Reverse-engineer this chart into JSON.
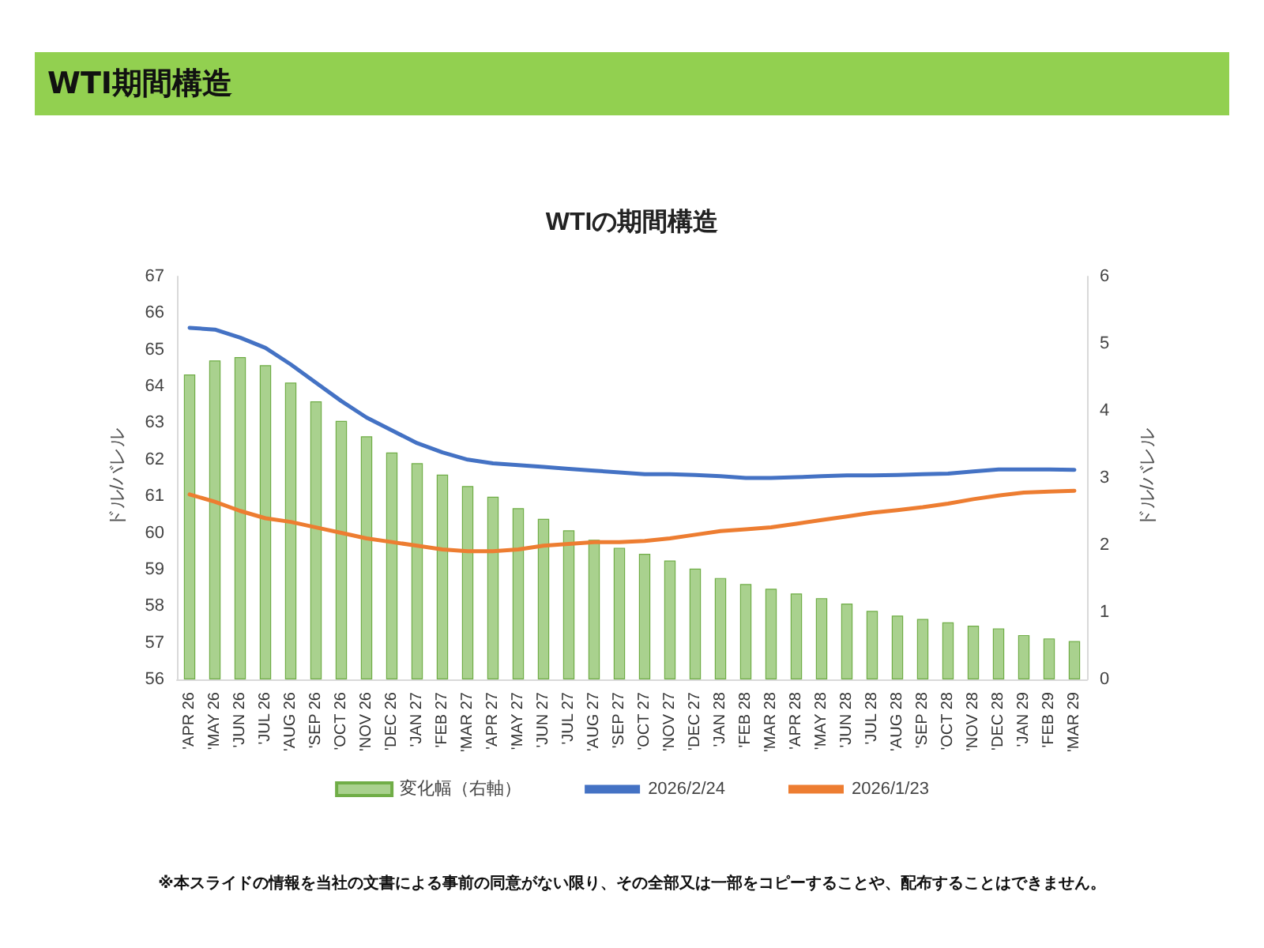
{
  "chart_data": {
    "type": "bar",
    "title": "WTIの期間構造",
    "subtitle": "WTI期間構造",
    "ylabel": "ドル/バレル",
    "y2label": "ドル/バレル",
    "annotations": [
      "※本スライドの情報を当社の文書による事前の同意がない限り、その全部又は一部をコピーすることや、配布することはできません。"
    ],
    "categories": [
      "'APR 26",
      "'MAY 26",
      "'JUN 26",
      "'JUL 26",
      "'AUG 26",
      "'SEP 26",
      "'OCT 26",
      "'NOV 26",
      "'DEC 26",
      "'JAN 27",
      "'FEB 27",
      "'MAR 27",
      "'APR 27",
      "'MAY 27",
      "'JUN 27",
      "'JUL 27",
      "'AUG 27",
      "'SEP 27",
      "'OCT 27",
      "'NOV 27",
      "'DEC 27",
      "'JAN 28",
      "'FEB 28",
      "'MAR 28",
      "'APR 28",
      "'MAY 28",
      "'JUN 28",
      "'JUL 28",
      "'AUG 28",
      "'SEP 28",
      "'OCT 28",
      "'NOV 28",
      "'DEC 28",
      "'JAN 29",
      "'FEB 29",
      "'MAR 29"
    ],
    "series": [
      {
        "name": "変化幅（右軸）",
        "axis": "y2",
        "color": "#a9d18e",
        "values": [
          4.54,
          4.75,
          4.8,
          4.68,
          4.42,
          4.14,
          3.85,
          3.62,
          3.38,
          3.22,
          3.05,
          2.88,
          2.72,
          2.55,
          2.39,
          2.22,
          2.08,
          1.96,
          1.87,
          1.77,
          1.65,
          1.51,
          1.42,
          1.35,
          1.28,
          1.21,
          1.13,
          1.02,
          0.95,
          0.9,
          0.85,
          0.8,
          0.76,
          0.66,
          0.61,
          0.57
        ]
      },
      {
        "name": "2026/2/24",
        "type": "line",
        "color": "#4472c4",
        "values": [
          65.6,
          65.55,
          65.33,
          65.05,
          64.6,
          64.1,
          63.6,
          63.15,
          62.8,
          62.45,
          62.2,
          62.0,
          61.9,
          61.85,
          61.8,
          61.75,
          61.7,
          61.65,
          61.6,
          61.6,
          61.58,
          61.55,
          61.5,
          61.5,
          61.52,
          61.55,
          61.57,
          61.57,
          61.58,
          61.6,
          61.62,
          61.68,
          61.73,
          61.73,
          61.73,
          61.72
        ]
      },
      {
        "name": "2026/1/23",
        "type": "line",
        "color": "#ed7d31",
        "values": [
          61.05,
          60.85,
          60.6,
          60.4,
          60.3,
          60.15,
          60.0,
          59.85,
          59.75,
          59.65,
          59.55,
          59.5,
          59.5,
          59.55,
          59.65,
          59.7,
          59.75,
          59.75,
          59.78,
          59.85,
          59.95,
          60.05,
          60.1,
          60.15,
          60.25,
          60.35,
          60.45,
          60.55,
          60.62,
          60.7,
          60.8,
          60.92,
          61.02,
          61.1,
          61.13,
          61.15
        ]
      }
    ],
    "ylim": [
      56,
      67
    ],
    "yticks": [
      56,
      57,
      58,
      59,
      60,
      61,
      62,
      63,
      64,
      65,
      66,
      67
    ],
    "y2lim": [
      0,
      6
    ],
    "y2ticks": [
      0,
      1,
      2,
      3,
      4,
      5,
      6
    ],
    "grid": false,
    "legend": "bottom",
    "marker": "none",
    "line_style": "solid"
  }
}
